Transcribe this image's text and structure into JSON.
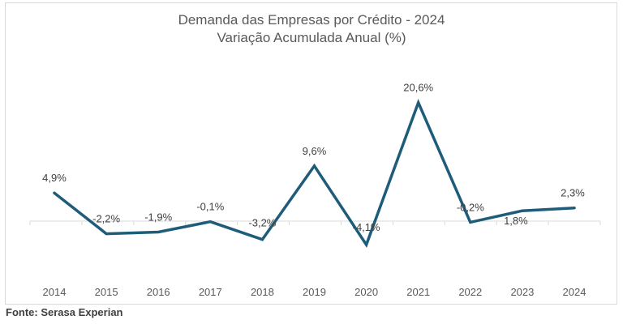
{
  "colors": {
    "series": "#1f5c7a",
    "axis": "#d9d9d9",
    "text": "#595959"
  },
  "chart_data": {
    "type": "line",
    "title": "Demanda das Empresas por Crédito - 2024",
    "subtitle": "Variação Acumulada Anual (%)",
    "x": [
      "2014",
      "2015",
      "2016",
      "2017",
      "2018",
      "2019",
      "2020",
      "2021",
      "2022",
      "2023",
      "2024"
    ],
    "series": [
      {
        "values": [
          4.9,
          -2.2,
          -1.9,
          -0.1,
          -3.2,
          9.6,
          -4.1,
          20.6,
          -0.2,
          1.8,
          2.3
        ],
        "data_labels": [
          "4,9%",
          "-2,2%",
          "-1,9%",
          "-0,1%",
          "-3,2%",
          "9,6%",
          "-4,1%",
          "20,6%",
          "-0,2%",
          "1,8%",
          "2,3%"
        ]
      }
    ],
    "ylim": [
      -5,
      22
    ],
    "grid": false,
    "legend": "none"
  },
  "source": "Fonte: Serasa Experian"
}
